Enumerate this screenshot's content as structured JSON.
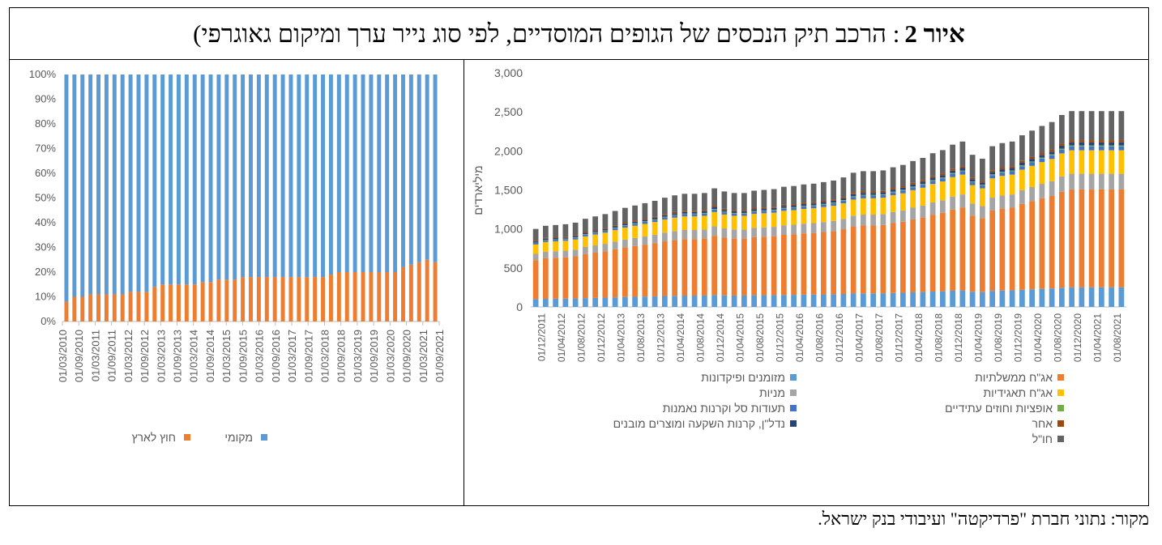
{
  "figure": {
    "number_label": "איור 2",
    "title": ": הרכב תיק הנכסים של הגופים המוסדיים, לפי סוג נייר ערך ומיקום גאוגרפי)"
  },
  "source_note": "מקור: נתוני חברת \"פרדיקטה\" ועיבודי בנק ישראל.",
  "chart_data": [
    {
      "type": "bar",
      "stacked": true,
      "percent": true,
      "x": [
        "01/03/2010",
        "01/06/2010",
        "01/09/2010",
        "01/12/2010",
        "01/03/2011",
        "01/06/2011",
        "01/09/2011",
        "01/12/2011",
        "01/03/2012",
        "01/06/2012",
        "01/09/2012",
        "01/12/2012",
        "01/03/2013",
        "01/06/2013",
        "01/09/2013",
        "01/12/2013",
        "01/03/2014",
        "01/06/2014",
        "01/09/2014",
        "01/12/2014",
        "01/03/2015",
        "01/06/2015",
        "01/09/2015",
        "01/12/2015",
        "01/03/2016",
        "01/06/2016",
        "01/09/2016",
        "01/12/2016",
        "01/03/2017",
        "01/06/2017",
        "01/09/2017",
        "01/12/2017",
        "01/03/2018",
        "01/06/2018",
        "01/09/2018",
        "01/12/2018",
        "01/03/2019",
        "01/06/2019",
        "01/09/2019",
        "01/12/2019",
        "01/03/2020",
        "01/06/2020",
        "01/09/2020",
        "01/12/2020",
        "01/03/2021",
        "01/06/2021",
        "01/09/2021"
      ],
      "x_tick_labels": [
        "01/03/2010",
        "01/09/2010",
        "01/03/2011",
        "01/09/2011",
        "01/03/2012",
        "01/09/2012",
        "01/03/2013",
        "01/09/2013",
        "01/03/2014",
        "01/09/2014",
        "01/03/2015",
        "01/09/2015",
        "01/03/2016",
        "01/09/2016",
        "01/03/2017",
        "01/09/2017",
        "01/03/2018",
        "01/09/2018",
        "01/03/2019",
        "01/09/2019",
        "01/03/2020",
        "01/09/2020",
        "01/03/2021",
        "01/09/2021"
      ],
      "ylim": [
        0,
        100
      ],
      "y_ticks": [
        "0%",
        "10%",
        "20%",
        "30%",
        "40%",
        "50%",
        "60%",
        "70%",
        "80%",
        "90%",
        "100%"
      ],
      "series": [
        {
          "name": "חוץ לארץ",
          "color": "#ED7D31",
          "values": [
            8,
            10,
            10,
            11,
            11,
            11,
            11,
            11,
            12,
            12,
            12,
            14,
            15,
            15,
            15,
            15,
            15,
            16,
            16,
            17,
            17,
            17,
            18,
            18,
            18,
            18,
            18,
            18,
            18,
            18,
            18,
            18,
            18,
            19,
            20,
            20,
            20,
            20,
            20,
            20,
            20,
            20,
            22,
            23,
            24,
            25,
            24
          ]
        },
        {
          "name": "מקומי",
          "color": "#5B9BD5",
          "values": [
            92,
            90,
            90,
            89,
            89,
            89,
            89,
            89,
            88,
            88,
            88,
            86,
            85,
            85,
            85,
            85,
            85,
            84,
            84,
            83,
            83,
            83,
            82,
            82,
            82,
            82,
            82,
            82,
            82,
            82,
            82,
            82,
            82,
            81,
            80,
            80,
            80,
            80,
            80,
            80,
            80,
            80,
            78,
            77,
            76,
            75,
            76
          ]
        }
      ],
      "legend": "bottom",
      "grid": false
    },
    {
      "type": "bar",
      "stacked": true,
      "ylabel": "מיליארדים",
      "ylim": [
        0,
        3000
      ],
      "y_ticks": [
        "0",
        "500",
        "1,000",
        "1,500",
        "2,000",
        "2,500",
        "3,000"
      ],
      "x": [
        "01/12/2011",
        "01/02/2012",
        "01/04/2012",
        "01/06/2012",
        "01/08/2012",
        "01/10/2012",
        "01/12/2012",
        "01/02/2013",
        "01/04/2013",
        "01/06/2013",
        "01/08/2013",
        "01/10/2013",
        "01/12/2013",
        "01/02/2014",
        "01/04/2014",
        "01/06/2014",
        "01/08/2014",
        "01/10/2014",
        "01/12/2014",
        "01/02/2015",
        "01/04/2015",
        "01/06/2015",
        "01/08/2015",
        "01/10/2015",
        "01/12/2015",
        "01/02/2016",
        "01/04/2016",
        "01/06/2016",
        "01/08/2016",
        "01/10/2016",
        "01/12/2016",
        "01/02/2017",
        "01/04/2017",
        "01/06/2017",
        "01/08/2017",
        "01/10/2017",
        "01/12/2017",
        "01/02/2018",
        "01/04/2018",
        "01/06/2018",
        "01/08/2018",
        "01/10/2018",
        "01/12/2018",
        "01/02/2019",
        "01/04/2019",
        "01/06/2019",
        "01/08/2019",
        "01/10/2019",
        "01/12/2019",
        "01/02/2020",
        "01/04/2020",
        "01/06/2020",
        "01/08/2020",
        "01/10/2020",
        "01/12/2020",
        "01/02/2021",
        "01/04/2021",
        "01/06/2021",
        "01/08/2021",
        "01/10/2021"
      ],
      "x_tick_labels": [
        "01/12/2011",
        "01/04/2012",
        "01/08/2012",
        "01/12/2012",
        "01/04/2013",
        "01/08/2013",
        "01/12/2013",
        "01/04/2014",
        "01/08/2014",
        "01/12/2014",
        "01/04/2015",
        "01/08/2015",
        "01/12/2015",
        "01/04/2016",
        "01/08/2016",
        "01/12/2016",
        "01/04/2017",
        "01/08/2017",
        "01/12/2017",
        "01/04/2018",
        "01/08/2018",
        "01/12/2018",
        "01/04/2019",
        "01/08/2019",
        "01/12/2019",
        "01/04/2020",
        "01/08/2020",
        "01/12/2020",
        "01/04/2021",
        "01/08/2021"
      ],
      "totals": [
        1000,
        1040,
        1050,
        1060,
        1080,
        1130,
        1160,
        1190,
        1230,
        1270,
        1300,
        1330,
        1360,
        1400,
        1430,
        1450,
        1450,
        1460,
        1520,
        1480,
        1460,
        1460,
        1490,
        1500,
        1510,
        1540,
        1550,
        1570,
        1580,
        1600,
        1620,
        1660,
        1720,
        1740,
        1740,
        1750,
        1790,
        1820,
        1870,
        1910,
        1970,
        2010,
        2080,
        2120,
        1950,
        1900,
        2060,
        2100,
        2120,
        2200,
        2260,
        2320,
        2370,
        2460,
        2510,
        2510,
        2510,
        2510,
        2510,
        2510
      ],
      "series": [
        {
          "name": "מזומנים ופיקדונות",
          "color": "#5B9BD5"
        },
        {
          "name": "אג\"ח ממשלתיות",
          "color": "#ED7D31"
        },
        {
          "name": "מניות",
          "color": "#A5A5A5"
        },
        {
          "name": "אג\"ח תאגידיות",
          "color": "#FFC000"
        },
        {
          "name": "תעודות סל וקרנות נאמנות",
          "color": "#4472C4"
        },
        {
          "name": "אופציות וחוזים עתידיים",
          "color": "#70AD47"
        },
        {
          "name": "נדל\"ן, קרנות השקעה ומוצרים מובנים",
          "color": "#264478"
        },
        {
          "name": "אחר",
          "color": "#9E480E"
        },
        {
          "name": "חו\"ל",
          "color": "#636363"
        }
      ],
      "legend": "bottom",
      "grid": false
    }
  ]
}
